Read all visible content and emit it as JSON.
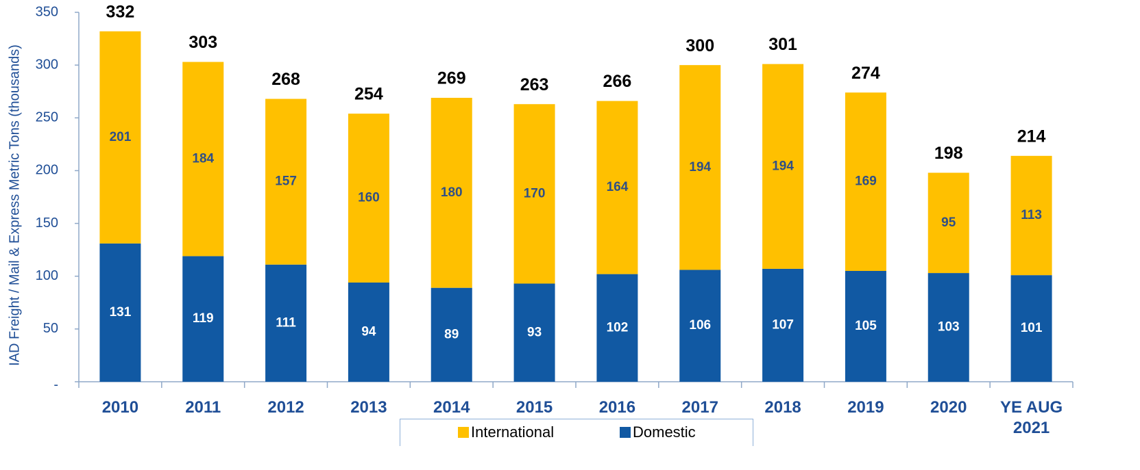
{
  "chart_data": {
    "type": "stacked_bar",
    "y_axis_label": "IAD Freight / Mail & Express Metric Tons (thousands)",
    "categories": [
      "2010",
      "2011",
      "2012",
      "2013",
      "2014",
      "2015",
      "2016",
      "2017",
      "2018",
      "2019",
      "2020",
      "YE AUG 2021"
    ],
    "series": [
      {
        "name": "International",
        "color": "#ffc000",
        "values": [
          201,
          184,
          157,
          160,
          180,
          170,
          164,
          194,
          194,
          169,
          95,
          113
        ]
      },
      {
        "name": "Domestic",
        "color": "#1159a3",
        "values": [
          131,
          119,
          111,
          94,
          89,
          93,
          102,
          106,
          107,
          105,
          103,
          101
        ]
      }
    ],
    "totals": [
      332,
      303,
      268,
      254,
      269,
      263,
      266,
      300,
      301,
      274,
      198,
      214
    ],
    "ylim": [
      0,
      350
    ],
    "yticks": [
      {
        "value": 0,
        "label": "-"
      },
      50,
      100,
      150,
      200,
      250,
      300,
      350
    ],
    "legend": "bottom"
  }
}
